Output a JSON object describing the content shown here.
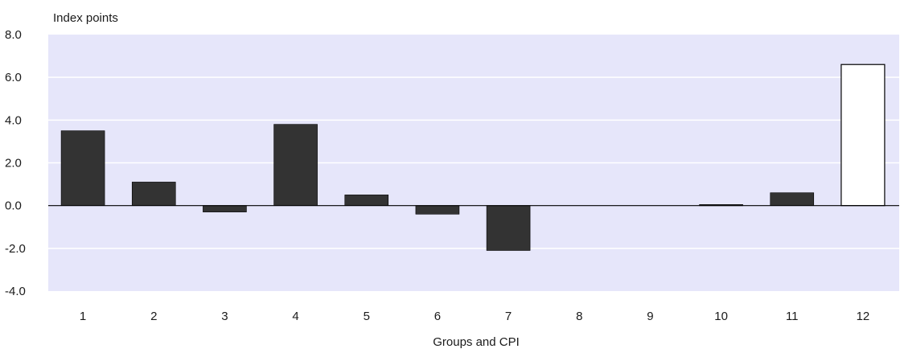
{
  "chart_data": {
    "type": "bar",
    "title": "",
    "ylabel": "Index points",
    "xlabel": "Groups and CPI",
    "ylim": [
      -4.0,
      8.0
    ],
    "yticks": [
      "8.0",
      "6.0",
      "4.0",
      "2.0",
      "0.0",
      "-2.0",
      "-4.0"
    ],
    "categories": [
      "1",
      "2",
      "3",
      "4",
      "5",
      "6",
      "7",
      "8",
      "9",
      "10",
      "11",
      "12"
    ],
    "values": [
      3.5,
      1.1,
      -0.3,
      3.8,
      0.5,
      -0.4,
      -2.1,
      0.0,
      0.0,
      0.05,
      0.6,
      6.6
    ],
    "grid": true,
    "colors": {
      "plot_bg": "#e6e6fa",
      "bar": "#333333",
      "highlight_bar": "#ffffff",
      "gridline": "#ffffff",
      "zero_line": "#000000"
    },
    "highlight_index": 11
  }
}
